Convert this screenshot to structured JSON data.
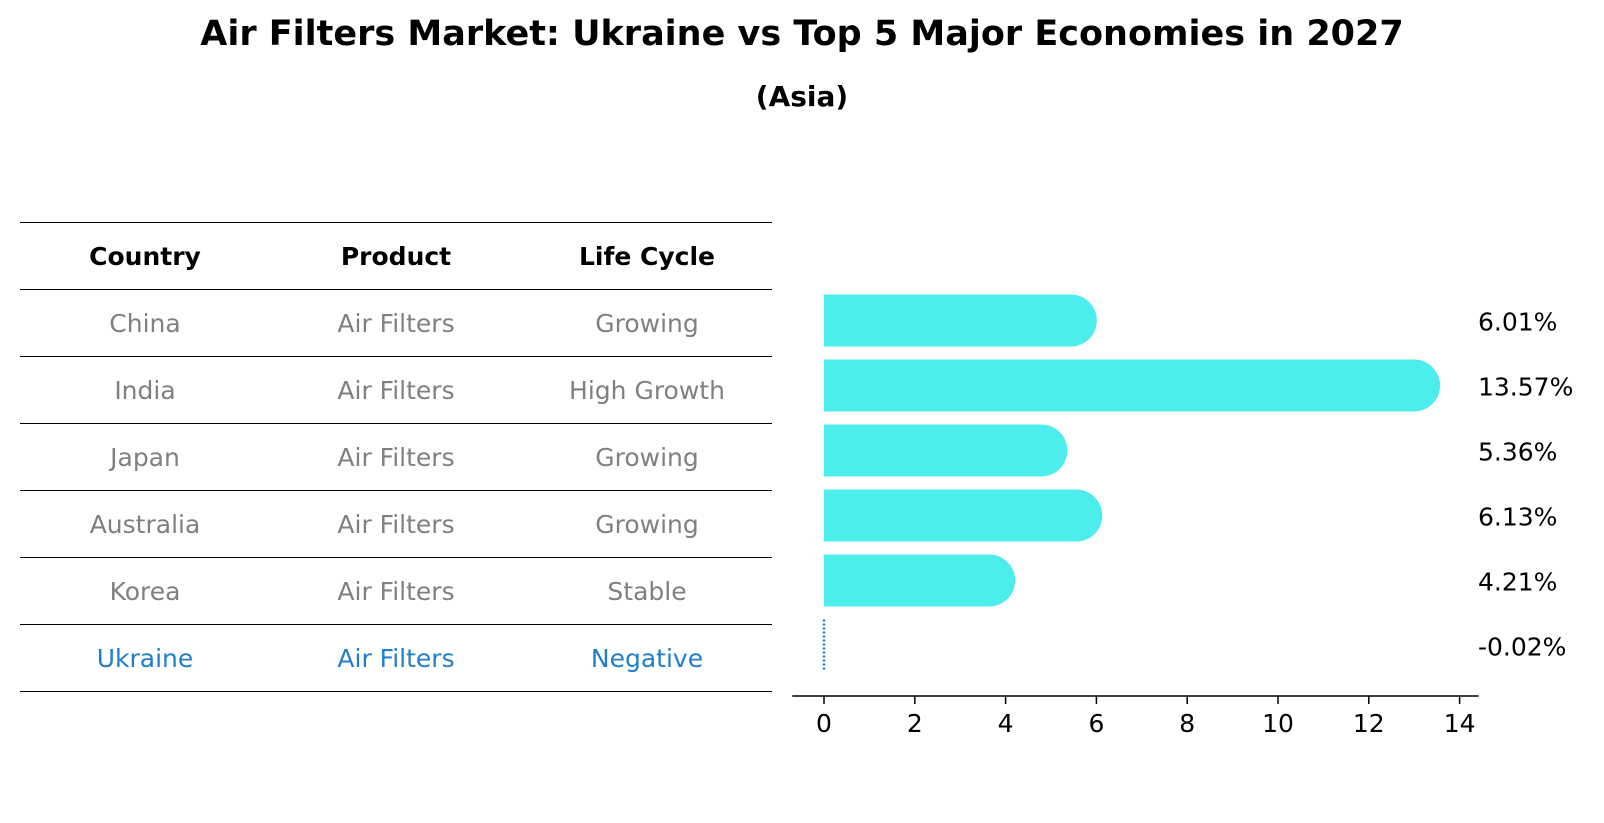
{
  "title": "Air Filters Market: Ukraine vs Top 5 Major Economies in 2027",
  "subtitle": "(Asia)",
  "table": {
    "headers": [
      "Country",
      "Product",
      "Life Cycle"
    ],
    "rows": [
      {
        "country": "China",
        "product": "Air Filters",
        "life_cycle": "Growing"
      },
      {
        "country": "India",
        "product": "Air Filters",
        "life_cycle": "High Growth"
      },
      {
        "country": "Japan",
        "product": "Air Filters",
        "life_cycle": "Growing"
      },
      {
        "country": "Australia",
        "product": "Air Filters",
        "life_cycle": "Growing"
      },
      {
        "country": "Korea",
        "product": "Air Filters",
        "life_cycle": "Stable"
      },
      {
        "country": "Ukraine",
        "product": "Air Filters",
        "life_cycle": "Negative"
      }
    ],
    "highlight_country": "Ukraine"
  },
  "colors": {
    "bar": "#4dedec",
    "highlight": "#1f7fce",
    "muted_text": "#808080"
  },
  "chart_data": {
    "type": "bar",
    "orientation": "horizontal",
    "title": "Air Filters Market: Ukraine vs Top 5 Major Economies in 2027",
    "subtitle": "(Asia)",
    "categories": [
      "China",
      "India",
      "Japan",
      "Australia",
      "Korea",
      "Ukraine"
    ],
    "values": [
      6.01,
      13.57,
      5.36,
      6.13,
      4.21,
      -0.02
    ],
    "value_labels": [
      "6.01%",
      "13.57%",
      "5.36%",
      "6.13%",
      "4.21%",
      "-0.02%"
    ],
    "xlim": [
      -0.7,
      14.2
    ],
    "xticks": [
      0,
      2,
      4,
      6,
      8,
      10,
      12,
      14
    ],
    "xlabel": "",
    "ylabel": "",
    "grid": false
  }
}
